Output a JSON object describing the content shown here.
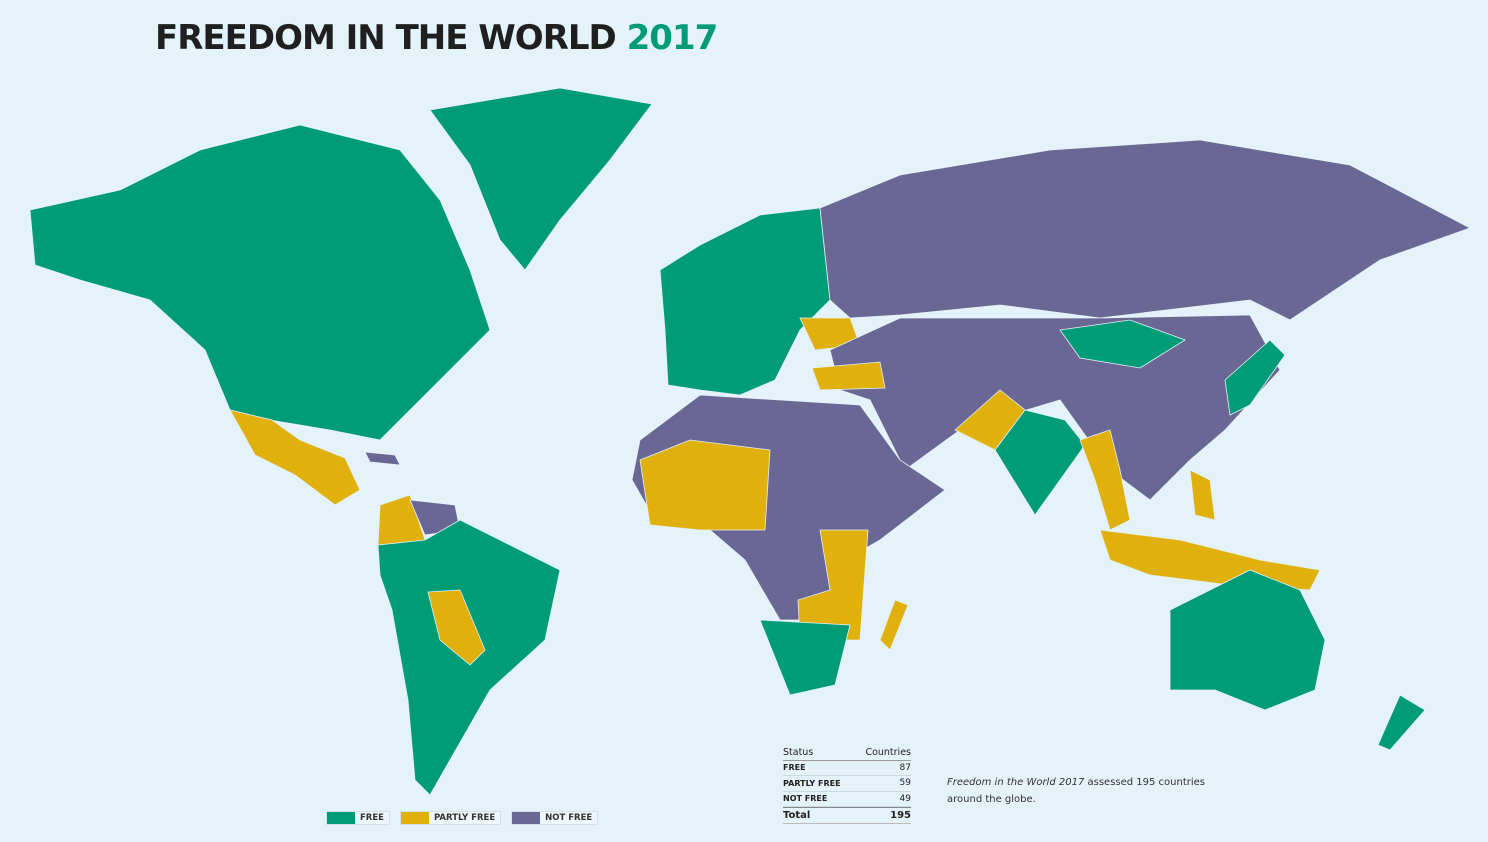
{
  "title": {
    "text": "FREEDOM IN THE WORLD",
    "year": "2017"
  },
  "colors": {
    "free": "#009b77",
    "partly_free": "#e0b00c",
    "not_free": "#6b6794",
    "background": "#e4f2f9"
  },
  "legend": [
    {
      "label": "FREE",
      "color": "#009b77"
    },
    {
      "label": "PARTLY FREE",
      "color": "#e0b00c"
    },
    {
      "label": "NOT FREE",
      "color": "#6b6794"
    }
  ],
  "table": {
    "header": {
      "status": "Status",
      "countries": "Countries"
    },
    "rows": [
      {
        "status": "FREE",
        "count": "87"
      },
      {
        "status": "PARTLY FREE",
        "count": "59"
      },
      {
        "status": "NOT FREE",
        "count": "49"
      }
    ],
    "total": {
      "label": "Total",
      "count": "195"
    }
  },
  "note": {
    "italic": "Freedom in the World 2017",
    "text": " assessed 195 countries",
    "line2": "around the globe."
  }
}
